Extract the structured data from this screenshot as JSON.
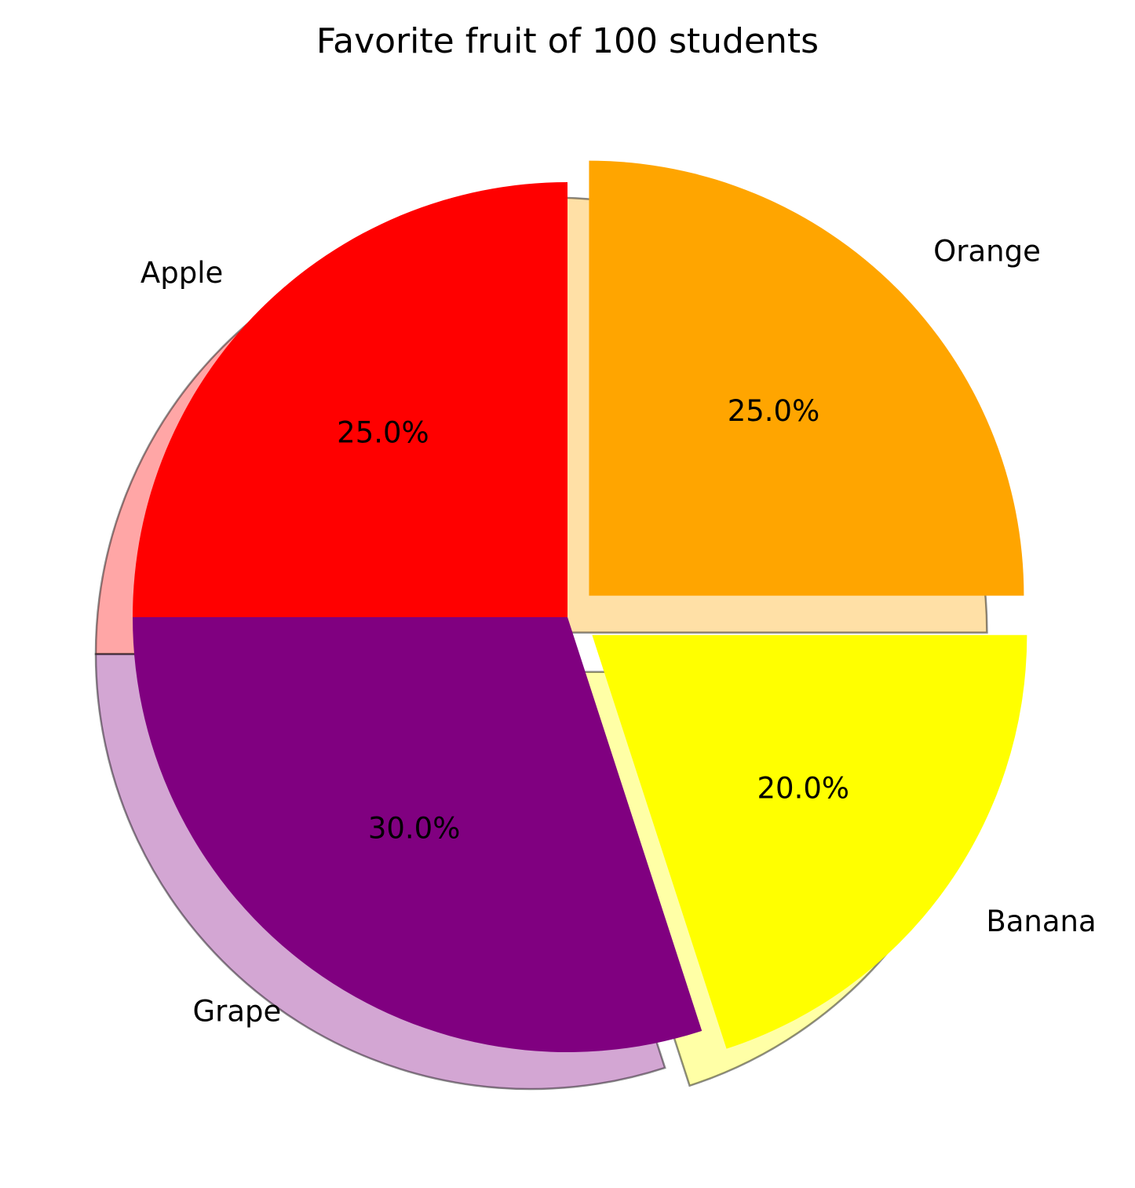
{
  "chart_data": {
    "type": "pie",
    "title": "Favorite fruit of 100 students",
    "start_angle_deg": 90,
    "direction": "counterclockwise",
    "shadow": true,
    "slices": [
      {
        "label": "Apple",
        "value": 25,
        "percent_label": "25.0%",
        "color": "#ff0000",
        "exploded": false
      },
      {
        "label": "Grape",
        "value": 30,
        "percent_label": "30.0%",
        "color": "#800080",
        "exploded": false
      },
      {
        "label": "Banana",
        "value": 20,
        "percent_label": "20.0%",
        "color": "#ffff00",
        "exploded": true
      },
      {
        "label": "Orange",
        "value": 25,
        "percent_label": "25.0%",
        "color": "#ffa500",
        "exploded": true
      }
    ]
  }
}
